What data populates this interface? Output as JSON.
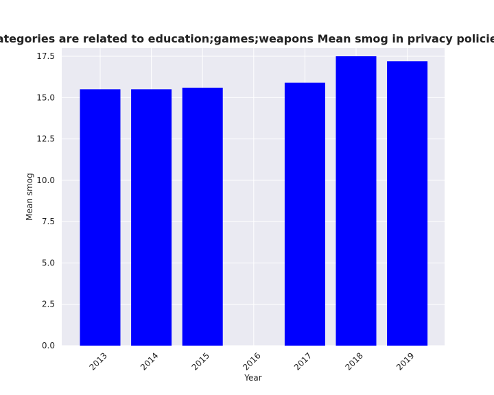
{
  "colors": {
    "bar": "#0000ff",
    "plot_background": "#eaeaf2",
    "grid": "#ffffff",
    "text": "#222222"
  },
  "chart_data": {
    "type": "bar",
    "title": "when categories are related to education;games;weapons Mean smog in privacy policies by Year",
    "xlabel": "Year",
    "ylabel": "Mean smog",
    "categories": [
      "2013",
      "2014",
      "2015",
      "2016",
      "2017",
      "2018",
      "2019"
    ],
    "values": [
      15.5,
      15.5,
      15.6,
      null,
      15.9,
      17.5,
      17.2
    ],
    "ylim": [
      0,
      18
    ],
    "yticks": [
      "0.0",
      "2.5",
      "5.0",
      "7.5",
      "10.0",
      "12.5",
      "15.0",
      "17.5"
    ],
    "grid": true,
    "legend": "none"
  }
}
